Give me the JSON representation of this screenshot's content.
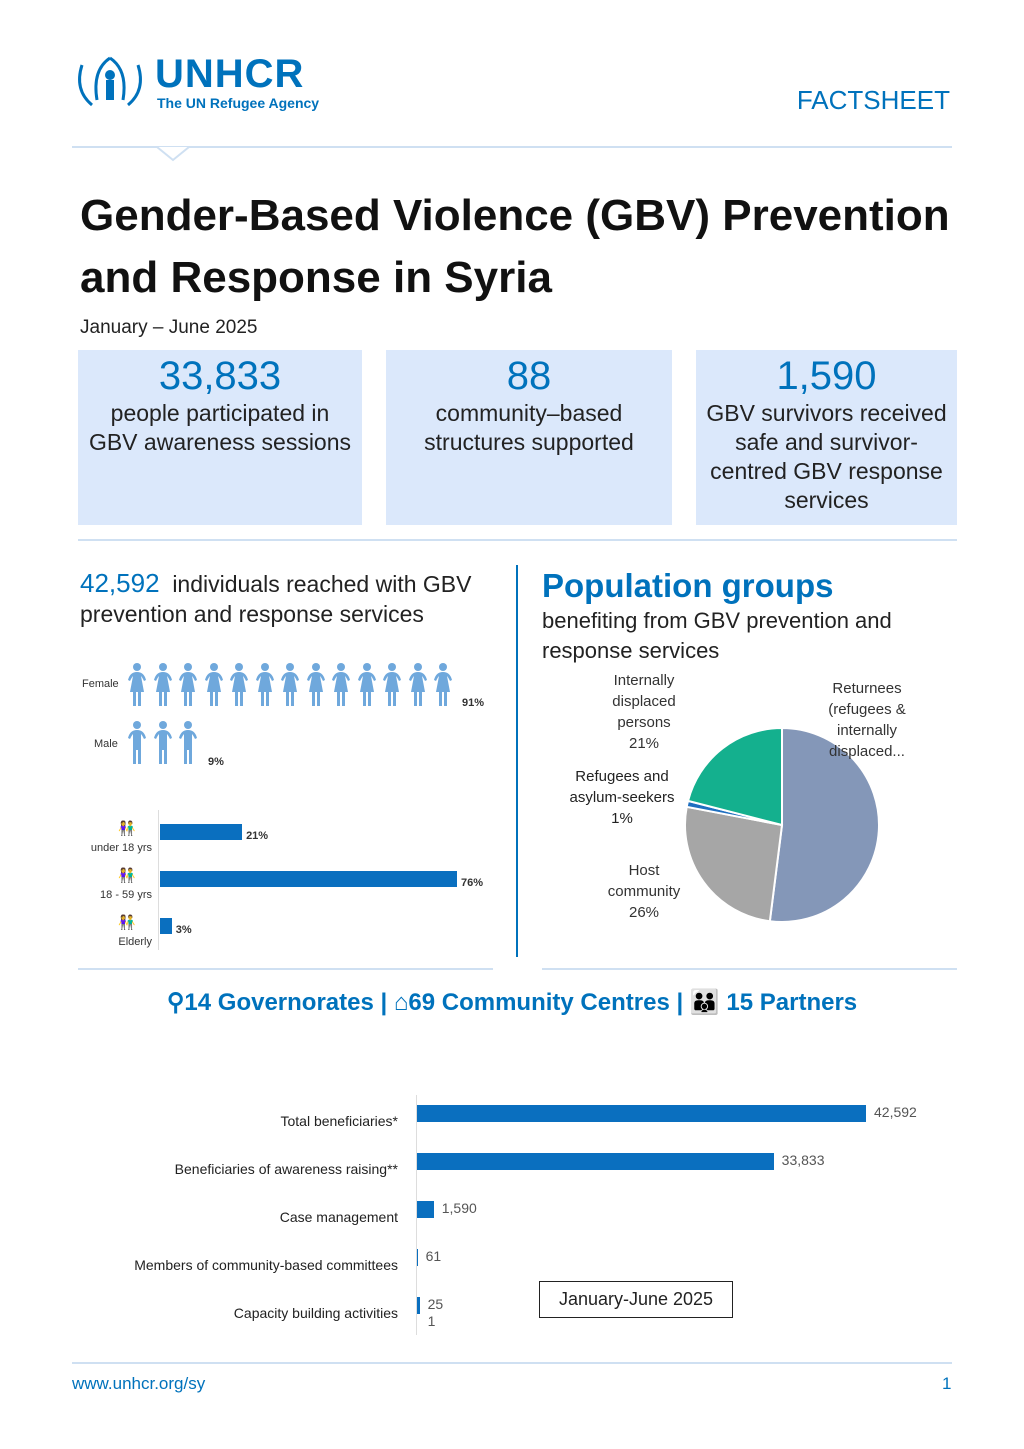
{
  "header": {
    "logo_name": "UNHCR",
    "logo_tagline": "The UN Refugee Agency",
    "doc_type": "FACTSHEET"
  },
  "title": "Gender-Based Violence (GBV) Prevention and Response in Syria",
  "period": "January – June 2025",
  "kpis": [
    {
      "value": "33,833",
      "text": "people participated in GBV awareness sessions"
    },
    {
      "value": "88",
      "text": "community–based structures supported"
    },
    {
      "value": "1,590",
      "text": "GBV survivors received safe and survivor-centred GBV response services"
    }
  ],
  "reach": {
    "value": "42,592",
    "text": "individuals reached with GBV prevention and response services"
  },
  "gender": [
    {
      "label": "Female",
      "pct": "91%",
      "icons": 13
    },
    {
      "label": "Male",
      "pct": "9%",
      "icons": 3
    }
  ],
  "age": [
    {
      "label": "under 18 yrs",
      "value": 21,
      "pct": "21%"
    },
    {
      "label": "18 - 59 yrs",
      "value": 76,
      "pct": "76%"
    },
    {
      "label": "Elderly",
      "value": 3,
      "pct": "3%"
    }
  ],
  "population": {
    "title": "Population groups",
    "subtitle": "benefiting from GBV prevention and response services"
  },
  "stats": {
    "governorates": "14 Governorates |",
    "centres": "69 Community Centres |",
    "partners": "15 Partners"
  },
  "chart_data": [
    {
      "type": "pie",
      "title": "Population groups",
      "slices": [
        {
          "label": "Returnees (refugees & internally displaced...",
          "value": 52,
          "color": "#8497b8"
        },
        {
          "label": "Host community",
          "value": 26,
          "pct": "26%",
          "color": "#a6a6a6"
        },
        {
          "label": "Refugees and asylum-seekers",
          "value": 1,
          "pct": "1%",
          "color": "#1f6fc0"
        },
        {
          "label": "Internally displaced persons",
          "value": 21,
          "pct": "21%",
          "color": "#14b08e"
        }
      ]
    },
    {
      "type": "bar",
      "orientation": "horizontal",
      "legend": "January-June 2025",
      "categories": [
        "Total beneficiaries*",
        "Beneficiaries of awareness raising**",
        "Case management",
        "Members of community-based committees",
        "Capacity building activities"
      ],
      "values": [
        42592,
        33833,
        1590,
        61,
        251
      ],
      "labels": [
        "42,592",
        "33,833",
        "1,590",
        "61",
        "25\n1"
      ],
      "xlim": [
        0,
        42592
      ]
    }
  ],
  "footer": {
    "url": "www.unhcr.org/sy",
    "page": "1"
  }
}
